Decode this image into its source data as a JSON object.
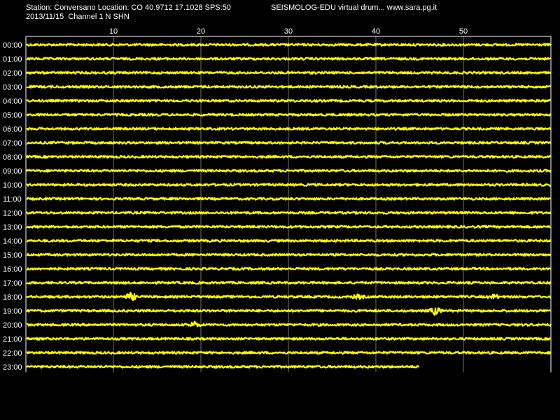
{
  "header": {
    "station_line": "Station: Conversano Location: CO 40.9712 17.1028 SPS:50",
    "app_line": "SEISMOLOG-EDU virtual drum... www.sara.pg.it",
    "date_line": "2013/11/15  Channel 1 N SHN"
  },
  "colors": {
    "background": "#000000",
    "trace": "#ffff00",
    "grid": "#ffffff",
    "text": "#ffffff"
  },
  "chart_data": {
    "type": "line",
    "title": "",
    "xlabel": "",
    "ylabel": "",
    "x_ticks": [
      "10",
      "20",
      "30",
      "40",
      "50"
    ],
    "x_tick_values": [
      10,
      20,
      30,
      40,
      50
    ],
    "xlim": [
      0,
      60
    ],
    "rows": [
      "00:00",
      "01:00",
      "02:00",
      "03:00",
      "04:00",
      "05:00",
      "06:00",
      "07:00",
      "08:00",
      "09:00",
      "10:00",
      "11:00",
      "12:00",
      "13:00",
      "14:00",
      "15:00",
      "16:00",
      "17:00",
      "18:00",
      "19:00",
      "20:00",
      "21:00",
      "22:00",
      "23:00"
    ],
    "last_row_end_minute": 45,
    "grid": "vertical",
    "events": [
      {
        "row": "18:00",
        "minute": 12,
        "amplitude": 3
      },
      {
        "row": "18:00",
        "minute": 38,
        "amplitude": 1.5
      },
      {
        "row": "18:00",
        "minute": 53.5,
        "amplitude": 1.5
      },
      {
        "row": "19:00",
        "minute": 46.8,
        "amplitude": 3
      },
      {
        "row": "20:00",
        "minute": 19.2,
        "amplitude": 2.5
      }
    ]
  }
}
